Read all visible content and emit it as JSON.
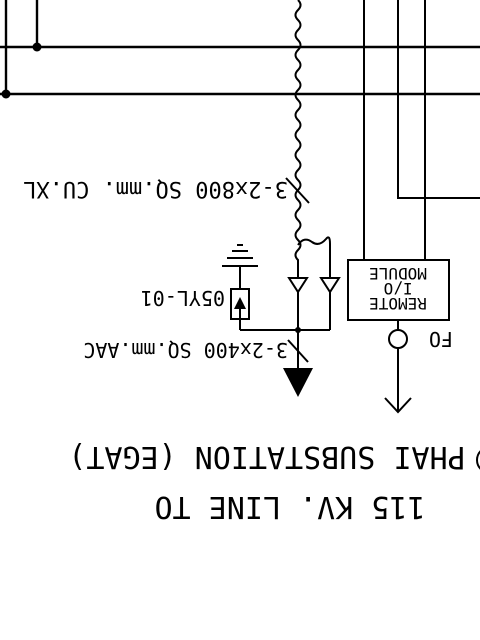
{
  "diagram": {
    "cable_upper": "3-2x800 SQ.mm. CU.XL",
    "cable_lower": "3-2x400 SQ.mm.AAC",
    "arrester_label": "05YL-01",
    "module_line1": "REMOTE",
    "module_line2": "I/O",
    "module_line3": "MODULE",
    "fiber_label": "FO",
    "line_title": "115 KV. LINE TO",
    "line_destination": "PHAI SUBSTATION (EGAT)"
  },
  "orientation": "rotated-180"
}
